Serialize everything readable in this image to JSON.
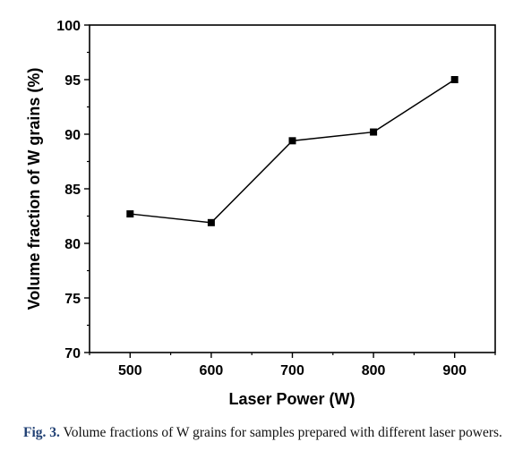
{
  "chart_data": {
    "type": "line",
    "x": [
      500,
      600,
      700,
      800,
      900
    ],
    "series": [
      {
        "values": [
          82.7,
          81.9,
          89.4,
          90.2,
          95.0
        ]
      }
    ],
    "xlabel": "Laser Power (W)",
    "ylabel": "Volume fraction of W grains (%)",
    "xticks": [
      500,
      600,
      700,
      800,
      900
    ],
    "yticks": [
      70,
      75,
      80,
      85,
      90,
      95,
      100
    ],
    "xlim": [
      450,
      950
    ],
    "ylim": [
      70,
      100
    ],
    "grid": false,
    "marker": "square",
    "line_color": "#000000"
  },
  "caption": {
    "label": "Fig. 3.",
    "text": " Volume fractions of W grains for samples prepared with different laser powers."
  }
}
